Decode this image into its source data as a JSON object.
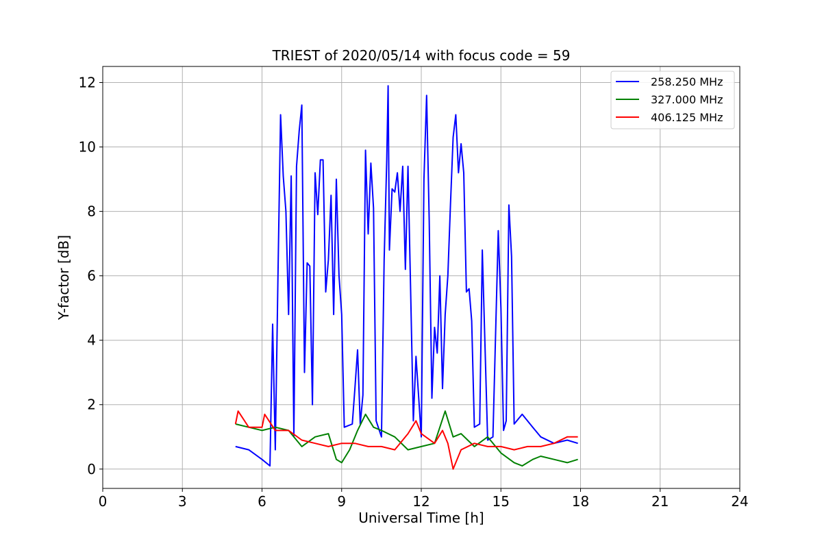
{
  "chart_data": {
    "type": "line",
    "title": "TRIEST of 2020/05/14 with focus code = 59",
    "xlabel": "Universal Time [h]",
    "ylabel": "Y-factor [dB]",
    "xlim": [
      0,
      24
    ],
    "ylim": [
      -0.6,
      12.5
    ],
    "xticks": [
      0,
      3,
      6,
      9,
      12,
      15,
      18,
      21,
      24
    ],
    "yticks": [
      0,
      2,
      4,
      6,
      8,
      10,
      12
    ],
    "grid": true,
    "legend_position": "top-right",
    "series": [
      {
        "name": "258.250 MHz",
        "color": "#0000ff",
        "points": [
          [
            5.0,
            0.7
          ],
          [
            5.5,
            0.6
          ],
          [
            6.0,
            0.3
          ],
          [
            6.3,
            0.1
          ],
          [
            6.4,
            4.5
          ],
          [
            6.5,
            0.6
          ],
          [
            6.6,
            6.0
          ],
          [
            6.7,
            11.0
          ],
          [
            6.8,
            9.1
          ],
          [
            6.9,
            8.0
          ],
          [
            7.0,
            4.8
          ],
          [
            7.1,
            9.1
          ],
          [
            7.2,
            1.0
          ],
          [
            7.3,
            9.4
          ],
          [
            7.4,
            10.5
          ],
          [
            7.5,
            11.3
          ],
          [
            7.6,
            3.0
          ],
          [
            7.7,
            6.4
          ],
          [
            7.8,
            6.3
          ],
          [
            7.9,
            2.0
          ],
          [
            8.0,
            9.2
          ],
          [
            8.1,
            7.9
          ],
          [
            8.2,
            9.6
          ],
          [
            8.3,
            9.6
          ],
          [
            8.4,
            5.5
          ],
          [
            8.5,
            6.5
          ],
          [
            8.6,
            8.5
          ],
          [
            8.7,
            4.8
          ],
          [
            8.8,
            9.0
          ],
          [
            8.9,
            6.0
          ],
          [
            9.0,
            4.8
          ],
          [
            9.1,
            1.3
          ],
          [
            9.4,
            1.4
          ],
          [
            9.5,
            2.5
          ],
          [
            9.6,
            3.7
          ],
          [
            9.7,
            1.4
          ],
          [
            9.8,
            2.3
          ],
          [
            9.9,
            9.9
          ],
          [
            10.0,
            7.3
          ],
          [
            10.1,
            9.5
          ],
          [
            10.2,
            8.1
          ],
          [
            10.3,
            1.5
          ],
          [
            10.5,
            1.0
          ],
          [
            10.6,
            6.5
          ],
          [
            10.7,
            9.6
          ],
          [
            10.75,
            11.9
          ],
          [
            10.8,
            6.8
          ],
          [
            10.9,
            8.7
          ],
          [
            11.0,
            8.6
          ],
          [
            11.1,
            9.2
          ],
          [
            11.2,
            8.0
          ],
          [
            11.3,
            9.4
          ],
          [
            11.4,
            6.2
          ],
          [
            11.5,
            9.4
          ],
          [
            11.6,
            5.5
          ],
          [
            11.7,
            1.5
          ],
          [
            11.8,
            3.5
          ],
          [
            12.0,
            1.0
          ],
          [
            12.1,
            9.0
          ],
          [
            12.2,
            11.6
          ],
          [
            12.3,
            7.7
          ],
          [
            12.4,
            2.2
          ],
          [
            12.5,
            4.4
          ],
          [
            12.6,
            3.6
          ],
          [
            12.7,
            6.0
          ],
          [
            12.8,
            2.5
          ],
          [
            12.9,
            4.8
          ],
          [
            13.0,
            6.0
          ],
          [
            13.1,
            8.2
          ],
          [
            13.2,
            10.3
          ],
          [
            13.3,
            11.0
          ],
          [
            13.4,
            9.2
          ],
          [
            13.5,
            10.1
          ],
          [
            13.6,
            9.2
          ],
          [
            13.7,
            5.5
          ],
          [
            13.8,
            5.6
          ],
          [
            13.9,
            4.6
          ],
          [
            14.0,
            1.3
          ],
          [
            14.2,
            1.4
          ],
          [
            14.3,
            6.8
          ],
          [
            14.5,
            0.9
          ],
          [
            14.7,
            1.0
          ],
          [
            14.9,
            7.4
          ],
          [
            15.0,
            5.0
          ],
          [
            15.1,
            1.2
          ],
          [
            15.2,
            1.5
          ],
          [
            15.3,
            8.2
          ],
          [
            15.4,
            6.6
          ],
          [
            15.5,
            1.4
          ],
          [
            15.8,
            1.7
          ],
          [
            16.0,
            1.5
          ],
          [
            16.2,
            1.3
          ],
          [
            16.5,
            1.0
          ],
          [
            17.0,
            0.8
          ],
          [
            17.5,
            0.9
          ],
          [
            17.9,
            0.8
          ]
        ]
      },
      {
        "name": "327.000 MHz",
        "color": "#008000",
        "points": [
          [
            5.0,
            1.4
          ],
          [
            5.5,
            1.3
          ],
          [
            6.0,
            1.2
          ],
          [
            6.5,
            1.3
          ],
          [
            7.0,
            1.2
          ],
          [
            7.5,
            0.7
          ],
          [
            8.0,
            1.0
          ],
          [
            8.5,
            1.1
          ],
          [
            8.8,
            0.3
          ],
          [
            9.0,
            0.2
          ],
          [
            9.3,
            0.6
          ],
          [
            9.6,
            1.2
          ],
          [
            9.9,
            1.7
          ],
          [
            10.2,
            1.3
          ],
          [
            10.5,
            1.2
          ],
          [
            11.0,
            1.0
          ],
          [
            11.5,
            0.6
          ],
          [
            12.0,
            0.7
          ],
          [
            12.5,
            0.8
          ],
          [
            12.9,
            1.8
          ],
          [
            13.2,
            1.0
          ],
          [
            13.5,
            1.1
          ],
          [
            14.0,
            0.7
          ],
          [
            14.5,
            1.0
          ],
          [
            15.0,
            0.5
          ],
          [
            15.5,
            0.2
          ],
          [
            15.8,
            0.1
          ],
          [
            16.2,
            0.3
          ],
          [
            16.5,
            0.4
          ],
          [
            17.0,
            0.3
          ],
          [
            17.5,
            0.2
          ],
          [
            17.9,
            0.3
          ]
        ]
      },
      {
        "name": "406.125 MHz",
        "color": "#ff0000",
        "points": [
          [
            5.0,
            1.4
          ],
          [
            5.1,
            1.8
          ],
          [
            5.5,
            1.3
          ],
          [
            6.0,
            1.3
          ],
          [
            6.1,
            1.7
          ],
          [
            6.5,
            1.2
          ],
          [
            7.0,
            1.2
          ],
          [
            7.5,
            0.9
          ],
          [
            8.0,
            0.8
          ],
          [
            8.5,
            0.7
          ],
          [
            9.0,
            0.8
          ],
          [
            9.5,
            0.8
          ],
          [
            10.0,
            0.7
          ],
          [
            10.5,
            0.7
          ],
          [
            11.0,
            0.6
          ],
          [
            11.5,
            1.1
          ],
          [
            11.8,
            1.5
          ],
          [
            12.0,
            1.1
          ],
          [
            12.5,
            0.8
          ],
          [
            12.8,
            1.2
          ],
          [
            13.0,
            0.8
          ],
          [
            13.2,
            0.0
          ],
          [
            13.5,
            0.6
          ],
          [
            14.0,
            0.8
          ],
          [
            14.5,
            0.7
          ],
          [
            15.0,
            0.7
          ],
          [
            15.5,
            0.6
          ],
          [
            16.0,
            0.7
          ],
          [
            16.5,
            0.7
          ],
          [
            17.0,
            0.8
          ],
          [
            17.5,
            1.0
          ],
          [
            17.9,
            1.0
          ]
        ]
      }
    ]
  }
}
